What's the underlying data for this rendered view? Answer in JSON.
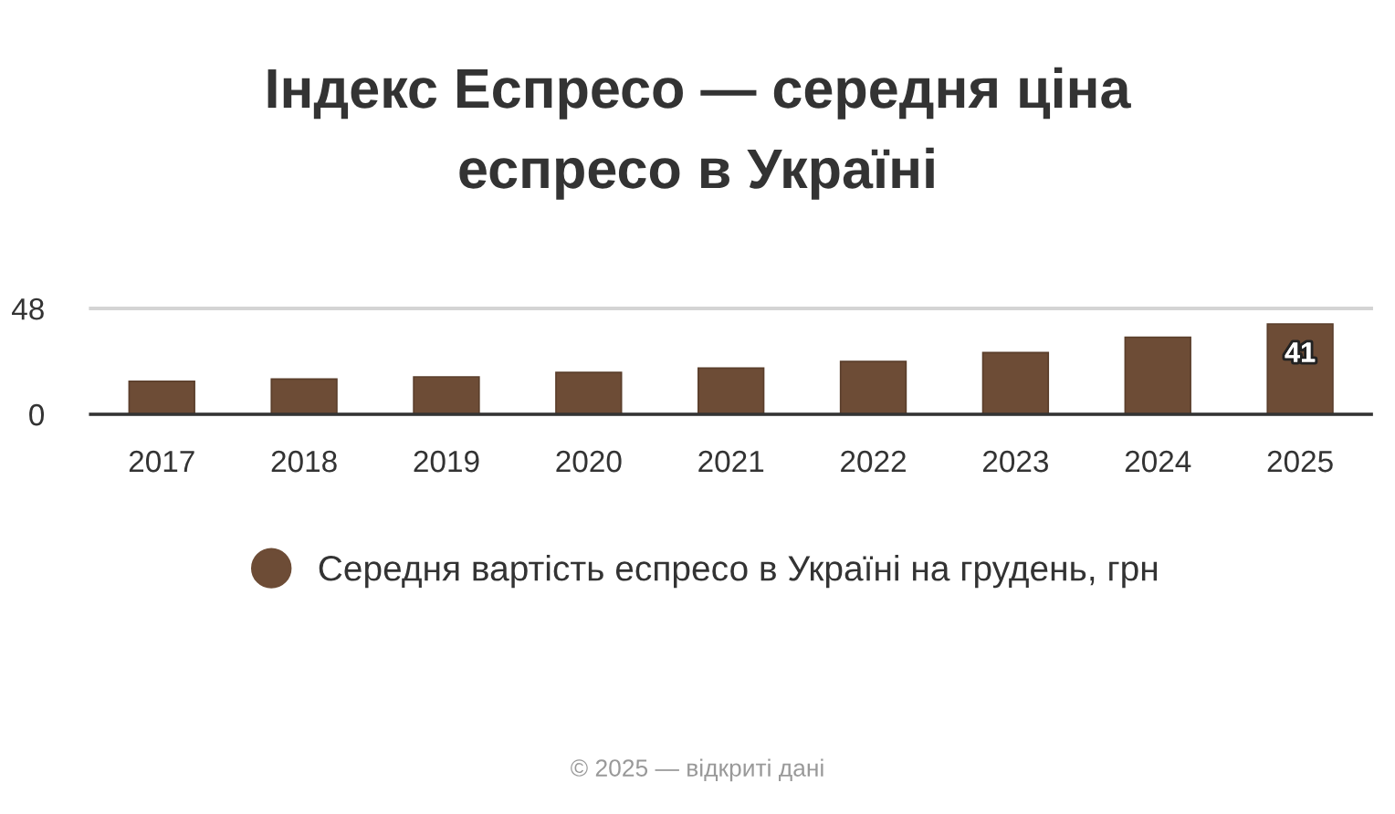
{
  "chart_data": {
    "type": "bar",
    "title": "Індекс Еспресо — середня ціна\nеспресо в Україні",
    "categories": [
      "2017",
      "2018",
      "2019",
      "2020",
      "2021",
      "2022",
      "2023",
      "2024",
      "2025"
    ],
    "series": [
      {
        "name": "Середня вартість еспресо в Україні на грудень, грн",
        "color": "#6d4c36",
        "values": [
          15,
          16,
          17,
          19,
          21,
          24,
          28,
          35,
          41
        ],
        "value_labels": [
          null,
          null,
          null,
          null,
          null,
          null,
          null,
          null,
          "41"
        ]
      }
    ],
    "ylim": [
      0,
      48
    ],
    "yticks": [
      0,
      48
    ],
    "grid": "y",
    "legend": "bottom",
    "annotations": [
      "© 2025 — відкриті дані"
    ]
  }
}
